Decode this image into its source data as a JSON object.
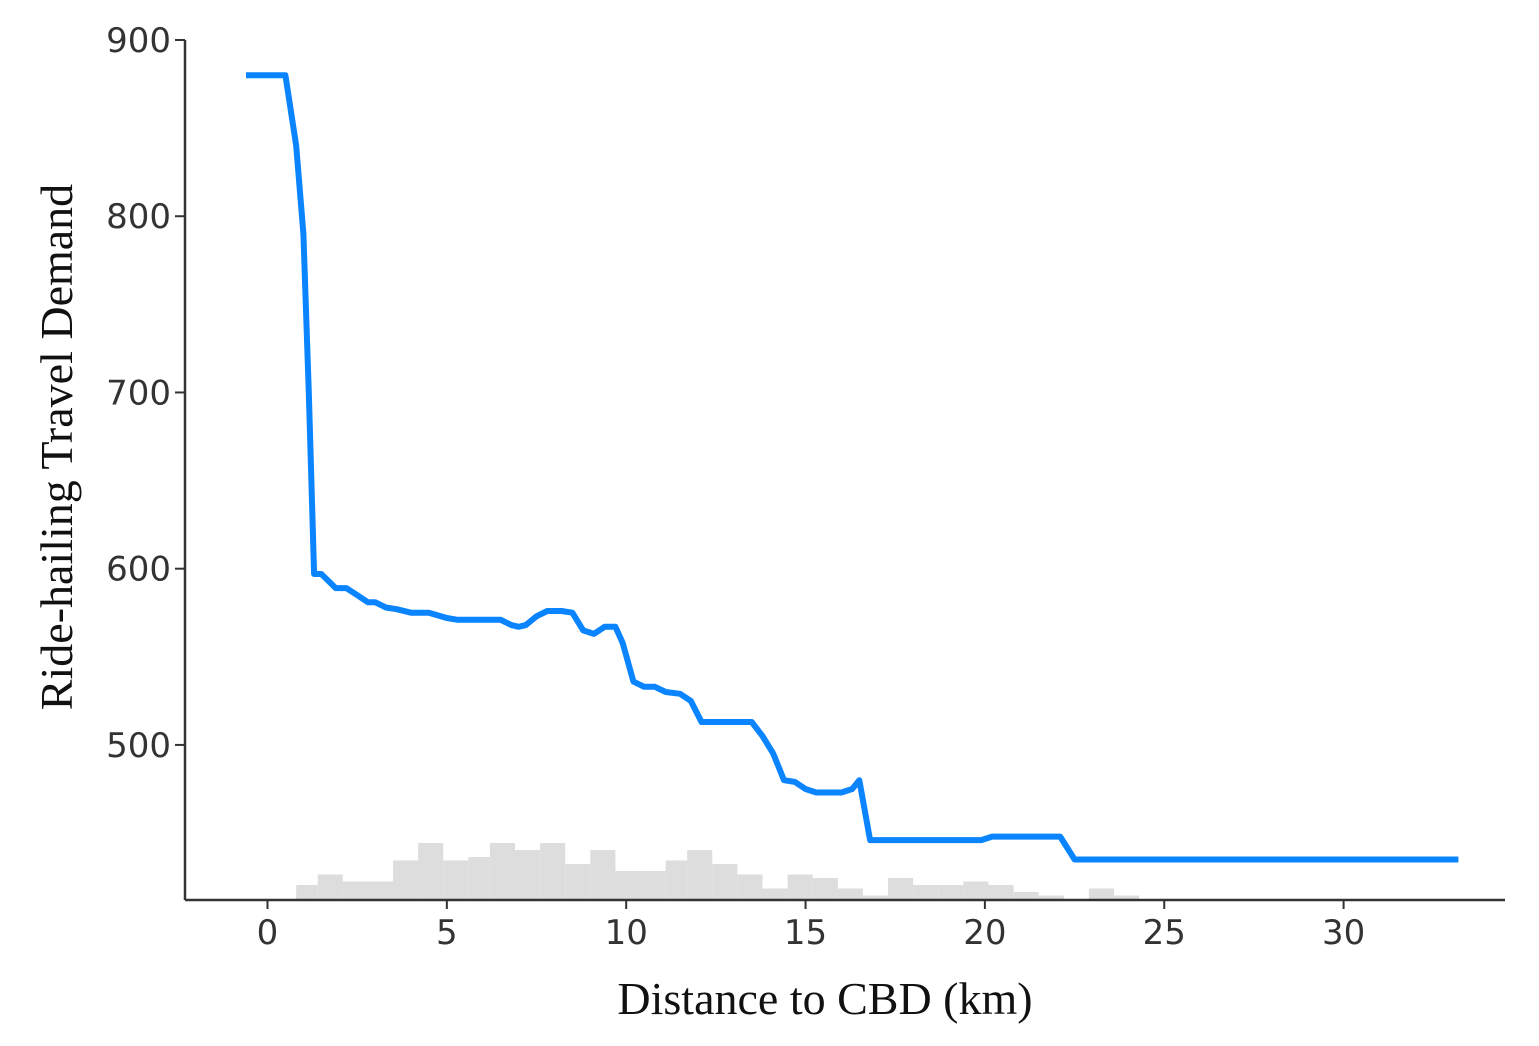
{
  "chart_data": {
    "type": "line",
    "xlabel": "Distance to CBD (km)",
    "ylabel": "Ride-hailing Travel Demand",
    "xlim": [
      -2.3,
      34.5
    ],
    "ylim": [
      412,
      900
    ],
    "x_ticks": [
      0,
      5,
      10,
      15,
      20,
      25,
      30
    ],
    "y_ticks": [
      500,
      600,
      700,
      800,
      900
    ],
    "grid": false,
    "legend": "none",
    "line_color": "#0a84ff",
    "histogram_color": "#dddddd",
    "series": [
      {
        "x": [
          -0.6,
          0.5,
          0.8,
          1.0,
          1.15,
          1.3,
          1.4,
          1.5,
          1.7,
          1.9,
          2.2,
          2.5,
          2.8,
          3.0,
          3.3,
          3.6,
          4.0,
          4.5,
          5.0,
          5.3,
          5.8,
          6.2,
          6.5,
          6.8,
          7.0,
          7.2,
          7.5,
          7.8,
          8.2,
          8.5,
          8.8,
          9.1,
          9.4,
          9.7,
          9.9,
          10.2,
          10.5,
          10.8,
          11.1,
          11.5,
          11.8,
          12.1,
          12.5,
          12.8,
          13.2,
          13.5,
          13.8,
          14.1,
          14.4,
          14.7,
          15.0,
          15.3,
          15.6,
          16.0,
          16.3,
          16.5,
          16.8,
          17.2,
          18.0,
          19.0,
          19.5,
          19.9,
          20.2,
          20.5,
          21.5,
          22.1,
          22.5,
          23.0,
          25.0,
          28.0,
          31.0,
          33.2
        ],
        "y": [
          880,
          880,
          840,
          790,
          700,
          597,
          597,
          597,
          593,
          589,
          589,
          585,
          581,
          581,
          578,
          577,
          575,
          575,
          572,
          571,
          571,
          571,
          571,
          568,
          567,
          568,
          573,
          576,
          576,
          575,
          565,
          563,
          567,
          567,
          558,
          536,
          533,
          533,
          530,
          529,
          525,
          513,
          513,
          513,
          513,
          513,
          505,
          495,
          480,
          479,
          475,
          473,
          473,
          473,
          475,
          480,
          446,
          446,
          446,
          446,
          446,
          446,
          448,
          448,
          448,
          448,
          435,
          435,
          435,
          435,
          435,
          435
        ]
      }
    ],
    "histogram": {
      "bin_start": [
        0.8,
        1.4,
        2.1,
        2.8,
        3.5,
        4.2,
        4.9,
        5.6,
        6.2,
        6.9,
        7.6,
        8.3,
        9.0,
        9.7,
        10.4,
        11.1,
        11.7,
        12.4,
        13.1,
        13.8,
        14.5,
        15.2,
        15.9,
        16.6,
        17.3,
        18.0,
        18.7,
        19.4,
        20.1,
        20.8,
        21.5,
        22.2,
        22.9,
        23.6
      ],
      "bin_end": [
        1.4,
        2.1,
        2.8,
        3.5,
        4.2,
        4.9,
        5.6,
        6.2,
        6.9,
        7.6,
        8.3,
        9.0,
        9.7,
        10.4,
        11.1,
        11.7,
        12.4,
        13.1,
        13.8,
        14.5,
        15.2,
        15.9,
        16.6,
        17.3,
        18.0,
        18.7,
        19.4,
        20.1,
        20.8,
        21.5,
        22.2,
        22.9,
        23.6,
        24.3
      ],
      "counts": [
        4,
        7,
        5,
        5,
        11,
        16,
        11,
        12,
        16,
        14,
        16,
        10,
        14,
        8,
        8,
        11,
        14,
        10,
        7,
        3,
        7,
        6,
        3,
        1,
        6,
        4,
        4,
        5,
        4,
        2,
        1,
        0,
        3,
        1
      ]
    }
  }
}
